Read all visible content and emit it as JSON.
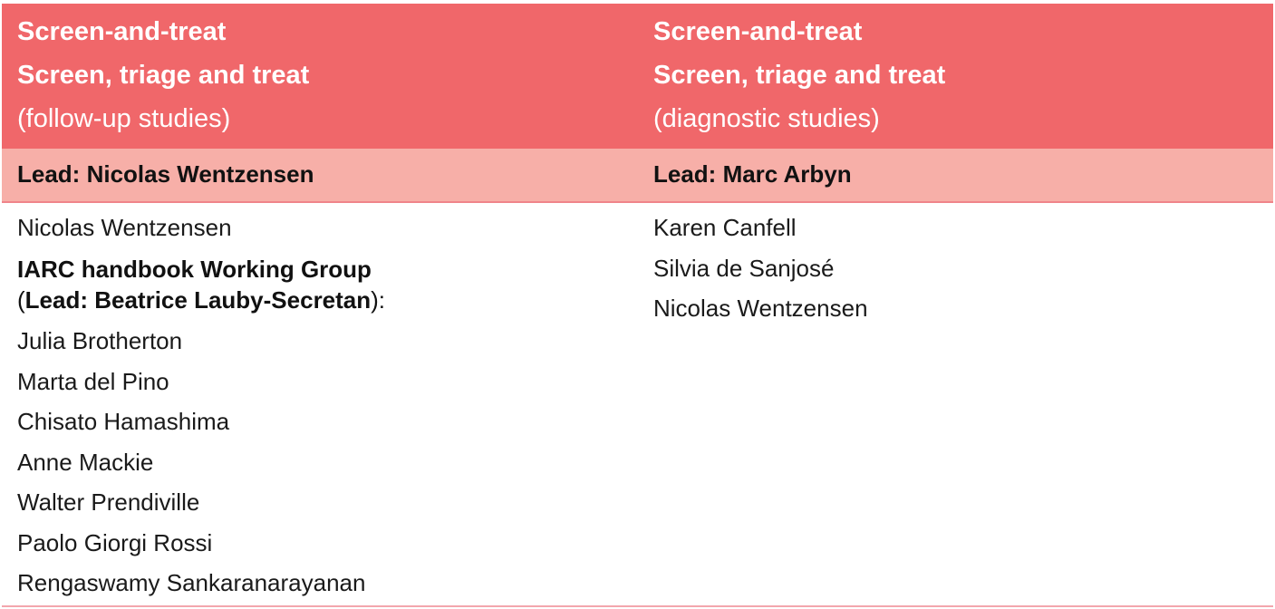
{
  "header": {
    "left": {
      "line1": "Screen-and-treat",
      "line2": "Screen, triage and treat",
      "line3": "(follow-up studies)"
    },
    "right": {
      "line1": "Screen-and-treat",
      "line2": "Screen, triage and treat",
      "line3": "(diagnostic studies)"
    }
  },
  "lead_row": {
    "left": "Lead: Nicolas Wentzensen",
    "right": "Lead: Marc Arbyn"
  },
  "left_column": {
    "first_member": "Nicolas Wentzensen",
    "working_group": {
      "title": "IARC handbook Working Group",
      "open_paren": "(",
      "lead": "Lead: Beatrice Lauby-Secretan",
      "close": "):"
    },
    "members": [
      "Julia Brotherton",
      "Marta del Pino",
      "Chisato Hamashima",
      "Anne Mackie",
      "Walter Prendiville",
      "Paolo Giorgi Rossi",
      "Rengaswamy Sankaranarayanan"
    ]
  },
  "right_column": {
    "members": [
      "Karen Canfell",
      "Silvia de Sanjosé",
      "Nicolas Wentzensen"
    ]
  }
}
